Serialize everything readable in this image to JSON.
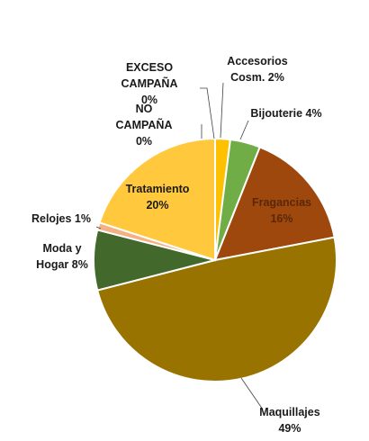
{
  "chart_data": {
    "type": "pie",
    "title": "",
    "slices": [
      {
        "label_lines": [
          "Accesorios",
          "Cosm. 2%"
        ],
        "value": 2,
        "color": "#ffc000"
      },
      {
        "label_lines": [
          "Bijouterie 4%"
        ],
        "value": 4,
        "color": "#70ad47"
      },
      {
        "label_lines": [
          "Fragancias",
          "16%"
        ],
        "value": 16,
        "color": "#9e480e"
      },
      {
        "label_lines": [
          "Maquillajes",
          "49%"
        ],
        "value": 49,
        "color": "#997300"
      },
      {
        "label_lines": [
          "Moda y",
          "Hogar 8%"
        ],
        "value": 8,
        "color": "#43682b"
      },
      {
        "label_lines": [
          "Relojes 1%"
        ],
        "value": 1,
        "color": "#f4b183"
      },
      {
        "label_lines": [
          "Tratamiento",
          "20%"
        ],
        "value": 20,
        "color": "#ffc83d"
      },
      {
        "label_lines": [
          "NO",
          "CAMPAÑA",
          "0%"
        ],
        "value": 0,
        "color": "#e2a800"
      },
      {
        "label_lines": [
          "EXCESO",
          "CAMPAÑA",
          "0%"
        ],
        "value": 0,
        "color": "#b08a00"
      }
    ]
  }
}
